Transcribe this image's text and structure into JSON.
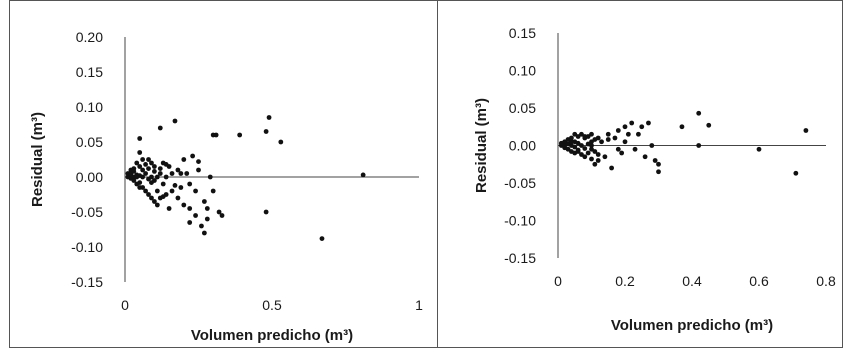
{
  "chart_data": [
    {
      "type": "scatter",
      "xlabel": "Volumen predicho (m³)",
      "ylabel": "Residual (m³)",
      "xlim": [
        0,
        1
      ],
      "ylim": [
        -0.15,
        0.2
      ],
      "xticks": [
        "0",
        "0.5",
        "1"
      ],
      "yticks": [
        "0.20",
        "0.15",
        "0.10",
        "0.05",
        "0.00",
        "-0.05",
        "-0.10",
        "-0.15"
      ],
      "grid": false,
      "series": [
        {
          "x": [
            0.01,
            0.01,
            0.02,
            0.02,
            0.02,
            0.03,
            0.03,
            0.03,
            0.03,
            0.04,
            0.04,
            0.04,
            0.05,
            0.05,
            0.05,
            0.05,
            0.05,
            0.06,
            0.06,
            0.06,
            0.06,
            0.07,
            0.07,
            0.07,
            0.08,
            0.08,
            0.08,
            0.09,
            0.09,
            0.09,
            0.1,
            0.1,
            0.1,
            0.1,
            0.11,
            0.11,
            0.11,
            0.12,
            0.12,
            0.12,
            0.13,
            0.13,
            0.14,
            0.14,
            0.15,
            0.15,
            0.16,
            0.16,
            0.17,
            0.18,
            0.18,
            0.19,
            0.2,
            0.2,
            0.21,
            0.22,
            0.22,
            0.23,
            0.24,
            0.24,
            0.25,
            0.26,
            0.27,
            0.27,
            0.28,
            0.29,
            0.3,
            0.3,
            0.31,
            0.32,
            0.33,
            0.39,
            0.48,
            0.48,
            0.49,
            0.53,
            0.67,
            0.81,
            0.04,
            0.05,
            0.08,
            0.09,
            0.12,
            0.13,
            0.14,
            0.17,
            0.19,
            0.22,
            0.25,
            0.28
          ],
          "y": [
            0.0,
            0.005,
            0.01,
            -0.002,
            0.004,
            0.012,
            0.0,
            -0.005,
            0.008,
            0.02,
            0.003,
            -0.01,
            0.055,
            0.035,
            0.015,
            0.002,
            -0.008,
            0.025,
            0.01,
            0.0,
            -0.015,
            0.018,
            0.005,
            -0.02,
            0.012,
            -0.003,
            -0.025,
            0.02,
            0.0,
            -0.03,
            0.008,
            -0.005,
            -0.035,
            0.015,
            0.0,
            -0.02,
            -0.04,
            0.07,
            0.005,
            -0.03,
            0.02,
            -0.01,
            0.0,
            -0.025,
            0.015,
            -0.045,
            0.005,
            -0.02,
            0.08,
            0.01,
            -0.03,
            -0.015,
            0.025,
            -0.04,
            0.005,
            -0.065,
            -0.01,
            0.03,
            -0.02,
            -0.055,
            0.01,
            -0.07,
            -0.035,
            -0.08,
            -0.045,
            0.0,
            0.06,
            -0.02,
            0.06,
            -0.05,
            -0.055,
            0.06,
            -0.05,
            0.065,
            0.085,
            0.05,
            -0.088,
            0.003,
            0.0,
            -0.015,
            0.025,
            -0.008,
            0.012,
            -0.028,
            0.018,
            -0.012,
            0.005,
            -0.045,
            0.022,
            -0.06
          ]
        }
      ]
    },
    {
      "type": "scatter",
      "xlabel": "Volumen predicho (m³)",
      "ylabel": "Residual (m³)",
      "xlim": [
        0,
        0.8
      ],
      "ylim": [
        -0.15,
        0.15
      ],
      "xticks": [
        "0",
        "0.2",
        "0.4",
        "0.6",
        "0.8"
      ],
      "yticks": [
        "0.15",
        "0.10",
        "0.05",
        "0.00",
        "-0.05",
        "-0.10",
        "-0.15"
      ],
      "grid": false,
      "series": [
        {
          "x": [
            0.01,
            0.01,
            0.02,
            0.02,
            0.02,
            0.03,
            0.03,
            0.03,
            0.04,
            0.04,
            0.04,
            0.05,
            0.05,
            0.05,
            0.05,
            0.06,
            0.06,
            0.06,
            0.07,
            0.07,
            0.07,
            0.08,
            0.08,
            0.08,
            0.09,
            0.09,
            0.09,
            0.1,
            0.1,
            0.1,
            0.1,
            0.11,
            0.11,
            0.11,
            0.12,
            0.12,
            0.13,
            0.14,
            0.15,
            0.16,
            0.17,
            0.18,
            0.19,
            0.2,
            0.2,
            0.21,
            0.22,
            0.23,
            0.24,
            0.25,
            0.26,
            0.27,
            0.28,
            0.29,
            0.3,
            0.3,
            0.37,
            0.42,
            0.42,
            0.45,
            0.6,
            0.71,
            0.74,
            0.04,
            0.06,
            0.08,
            0.1,
            0.12,
            0.15,
            0.18
          ],
          "y": [
            0.0,
            0.003,
            0.005,
            -0.003,
            0.0,
            0.008,
            0.002,
            -0.005,
            0.01,
            0.0,
            -0.008,
            0.015,
            0.005,
            -0.002,
            -0.01,
            0.012,
            0.003,
            -0.006,
            0.015,
            0.0,
            -0.012,
            0.01,
            -0.004,
            -0.015,
            0.012,
            0.002,
            -0.01,
            0.015,
            0.005,
            -0.005,
            -0.018,
            0.008,
            -0.008,
            -0.025,
            0.01,
            -0.012,
            0.005,
            -0.015,
            0.015,
            -0.03,
            0.01,
            0.02,
            -0.01,
            0.025,
            0.005,
            0.015,
            0.03,
            -0.005,
            0.015,
            0.025,
            -0.015,
            0.03,
            0.0,
            -0.02,
            -0.025,
            -0.035,
            0.025,
            0.043,
            0.0,
            0.027,
            -0.005,
            -0.037,
            0.02,
            0.005,
            -0.008,
            0.012,
            0.0,
            -0.02,
            0.008,
            -0.005
          ]
        }
      ]
    }
  ]
}
